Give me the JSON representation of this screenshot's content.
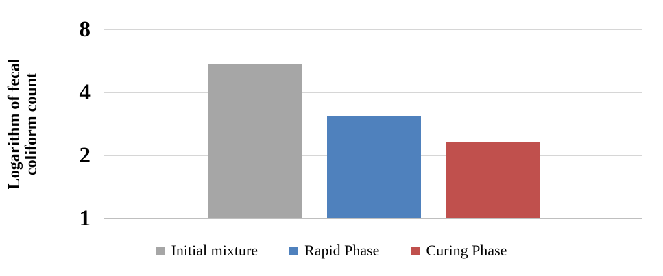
{
  "chart_data": {
    "type": "bar",
    "title": "",
    "xlabel": "",
    "ylabel": "Logarithm of fecal coliform count",
    "ylabel_lines": [
      "Logarithm of fecal",
      "coliform count"
    ],
    "y_scale": "log2",
    "ylim": [
      1,
      8
    ],
    "y_ticks": [
      8,
      4,
      2,
      1
    ],
    "grid": "horizontal",
    "legend_position": "bottom",
    "categories": [
      "Initial mixture",
      "Rapid Phase",
      "Curing Phase"
    ],
    "series": [
      {
        "name": "Initial mixture",
        "value": 5.5,
        "color": "#A6A6A6"
      },
      {
        "name": "Rapid Phase",
        "value": 3.1,
        "color": "#4F81BD"
      },
      {
        "name": "Curing Phase",
        "value": 2.3,
        "color": "#C0504D"
      }
    ]
  },
  "colors": {
    "gridline": "#D6D6D6",
    "baseline": "#BFBFBF",
    "background": "#FFFFFF",
    "text": "#000000"
  }
}
